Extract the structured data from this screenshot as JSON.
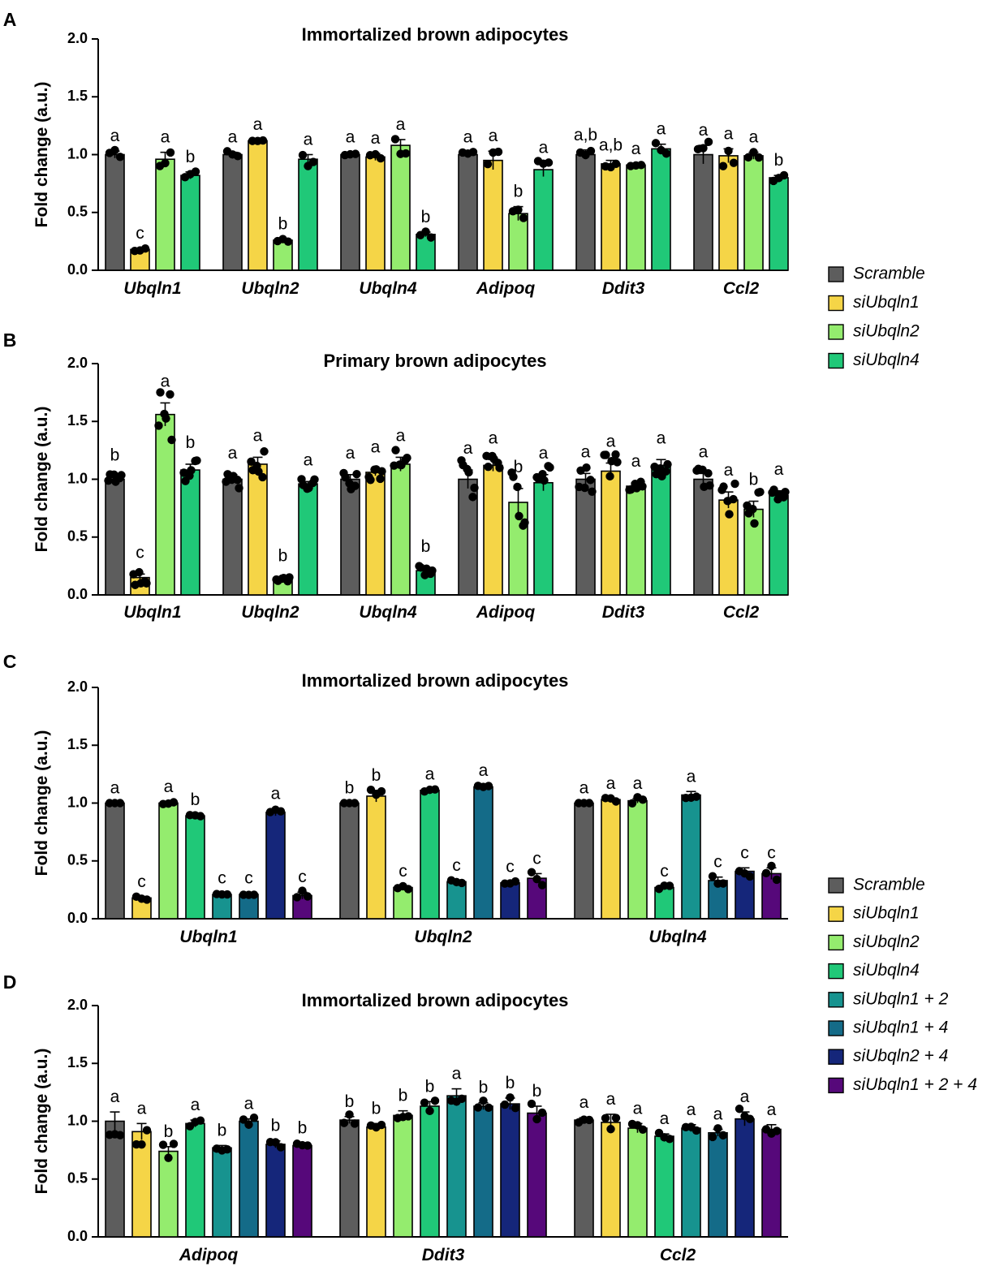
{
  "figure": {
    "y_label": "Fold change (a.u.)",
    "legend_top": [
      {
        "label": "Scramble",
        "color": "#5d5d5d"
      },
      {
        "label": "siUbqln1",
        "color": "#f5d547"
      },
      {
        "label": "siUbqln2",
        "color": "#94ec6e"
      },
      {
        "label": "siUbqln4",
        "color": "#20c878"
      }
    ],
    "legend_bottom": [
      {
        "label": "Scramble",
        "color": "#5d5d5d"
      },
      {
        "label": "siUbqln1",
        "color": "#f5d547"
      },
      {
        "label": "siUbqln2",
        "color": "#94ec6e"
      },
      {
        "label": "siUbqln4",
        "color": "#20c878"
      },
      {
        "label": "siUbqln1 + 2",
        "color": "#17938f"
      },
      {
        "label": "siUbqln1 + 4",
        "color": "#146b88"
      },
      {
        "label": "siUbqln2 + 4",
        "color": "#15267a"
      },
      {
        "label": "siUbqln1 + 2 + 4",
        "color": "#56087a"
      }
    ]
  },
  "chart_data": [
    {
      "panel": "A",
      "type": "bar",
      "title": "Immortalized brown adipocytes",
      "ylabel": "Fold change (a.u.)",
      "ylim": [
        0,
        2.0
      ],
      "yticks": [
        "0.0",
        "0.5",
        "1.0",
        "1.5",
        "2.0"
      ],
      "categories": [
        "Ubqln1",
        "Ubqln2",
        "Ubqln4",
        "Adipoq",
        "Ddit3",
        "Ccl2"
      ],
      "series": [
        {
          "name": "Scramble",
          "values": [
            1.0,
            1.0,
            1.0,
            1.0,
            1.0,
            1.0
          ],
          "sem": [
            0.03,
            0.02,
            0.02,
            0.02,
            0.04,
            0.08
          ],
          "letters": [
            "a",
            "a",
            "a",
            "a",
            "a,b",
            "a"
          ]
        },
        {
          "name": "siUbqln1",
          "values": [
            0.18,
            1.12,
            0.98,
            0.95,
            0.92,
            0.99
          ],
          "sem": [
            0.01,
            0.01,
            0.03,
            0.08,
            0.03,
            0.06
          ],
          "letters": [
            "c",
            "a",
            "a",
            "a",
            "a,b",
            "a"
          ]
        },
        {
          "name": "siUbqln2",
          "values": [
            0.96,
            0.26,
            1.08,
            0.49,
            0.91,
            0.99
          ],
          "sem": [
            0.06,
            0.01,
            0.05,
            0.06,
            0.01,
            0.03
          ],
          "letters": [
            "a",
            "b",
            "a",
            "b",
            "a",
            "a"
          ]
        },
        {
          "name": "siUbqln4",
          "values": [
            0.82,
            0.96,
            0.31,
            0.87,
            1.05,
            0.8
          ],
          "sem": [
            0.03,
            0.04,
            0.02,
            0.06,
            0.04,
            0.02
          ],
          "letters": [
            "b",
            "a",
            "b",
            "a",
            "a",
            "b"
          ]
        }
      ]
    },
    {
      "panel": "B",
      "type": "bar",
      "title": "Primary brown adipocytes",
      "ylabel": "Fold change (a.u.)",
      "ylim": [
        0,
        2.0
      ],
      "yticks": [
        "0.0",
        "0.5",
        "1.0",
        "1.5",
        "2.0"
      ],
      "categories": [
        "Ubqln1",
        "Ubqln2",
        "Ubqln4",
        "Adipoq",
        "Ddit3",
        "Ccl2"
      ],
      "series": [
        {
          "name": "Scramble",
          "values": [
            1.0,
            1.0,
            1.0,
            1.0,
            1.0,
            1.0
          ],
          "sem": [
            0.02,
            0.04,
            0.04,
            0.08,
            0.05,
            0.05
          ],
          "letters": [
            "b",
            "a",
            "a",
            "a",
            "a",
            "a"
          ]
        },
        {
          "name": "siUbqln1",
          "values": [
            0.15,
            1.13,
            1.06,
            1.12,
            1.07,
            0.82
          ],
          "sem": [
            0.03,
            0.06,
            0.03,
            0.05,
            0.07,
            0.07
          ],
          "letters": [
            "c",
            "a",
            "a",
            "a",
            "a",
            "a"
          ]
        },
        {
          "name": "siUbqln2",
          "values": [
            1.56,
            0.14,
            1.13,
            0.8,
            0.94,
            0.74
          ],
          "sem": [
            0.1,
            0.01,
            0.06,
            0.12,
            0.03,
            0.07
          ],
          "letters": [
            "a",
            "b",
            "a",
            "b",
            "a",
            "b"
          ]
        },
        {
          "name": "siUbqln4",
          "values": [
            1.08,
            0.96,
            0.21,
            0.97,
            1.12,
            0.86
          ],
          "sem": [
            0.05,
            0.02,
            0.02,
            0.07,
            0.05,
            0.04
          ],
          "letters": [
            "b",
            "a",
            "b",
            "a",
            "a",
            "a"
          ]
        }
      ]
    },
    {
      "panel": "C",
      "type": "bar",
      "title": "Immortalized brown adipocytes",
      "ylabel": "Fold change (a.u.)",
      "ylim": [
        0,
        2.0
      ],
      "yticks": [
        "0.0",
        "0.5",
        "1.0",
        "1.5",
        "2.0"
      ],
      "categories": [
        "Ubqln1",
        "Ubqln2",
        "Ubqln4"
      ],
      "series": [
        {
          "name": "Scramble",
          "values": [
            1.0,
            1.0,
            1.0
          ],
          "sem": [
            0.0,
            0.0,
            0.0
          ],
          "letters": [
            "a",
            "b",
            "a"
          ]
        },
        {
          "name": "siUbqln1",
          "values": [
            0.18,
            1.06,
            1.03
          ],
          "sem": [
            0.01,
            0.05,
            0.01
          ],
          "letters": [
            "c",
            "b",
            "a"
          ]
        },
        {
          "name": "siUbqln2",
          "values": [
            1.0,
            0.27,
            1.02
          ],
          "sem": [
            0.01,
            0.01,
            0.02
          ],
          "letters": [
            "a",
            "c",
            "a"
          ]
        },
        {
          "name": "siUbqln4",
          "values": [
            0.89,
            1.11,
            0.27
          ],
          "sem": [
            0.01,
            0.01,
            0.01
          ],
          "letters": [
            "b",
            "a",
            "c"
          ]
        },
        {
          "name": "siUbqln1 + 2",
          "values": [
            0.21,
            0.32,
            1.07
          ],
          "sem": [
            0.01,
            0.01,
            0.03
          ],
          "letters": [
            "c",
            "c",
            "a"
          ]
        },
        {
          "name": "siUbqln1 + 4",
          "values": [
            0.21,
            1.14,
            0.33
          ],
          "sem": [
            0.01,
            0.01,
            0.03
          ],
          "letters": [
            "c",
            "a",
            "c"
          ]
        },
        {
          "name": "siUbqln2 + 4",
          "values": [
            0.92,
            0.31,
            0.41
          ],
          "sem": [
            0.03,
            0.01,
            0.03
          ],
          "letters": [
            "a",
            "c",
            "c"
          ]
        },
        {
          "name": "siUbqln1 + 2 + 4",
          "values": [
            0.2,
            0.35,
            0.39
          ],
          "sem": [
            0.03,
            0.04,
            0.05
          ],
          "letters": [
            "c",
            "c",
            "c"
          ]
        }
      ]
    },
    {
      "panel": "D",
      "type": "bar",
      "title": "Immortalized brown adipocytes",
      "ylabel": "Fold change (a.u.)",
      "ylim": [
        0,
        2.0
      ],
      "yticks": [
        "0.0",
        "0.5",
        "1.0",
        "1.5",
        "2.0"
      ],
      "categories": [
        "Adipoq",
        "Ddit3",
        "Ccl2"
      ],
      "series": [
        {
          "name": "Scramble",
          "values": [
            1.0,
            1.01,
            1.01
          ],
          "sem": [
            0.08,
            0.03,
            0.02
          ],
          "letters": [
            "a",
            "b",
            "a"
          ]
        },
        {
          "name": "siUbqln1",
          "values": [
            0.91,
            0.95,
            0.99
          ],
          "sem": [
            0.07,
            0.03,
            0.07
          ],
          "letters": [
            "a",
            "b",
            "a"
          ]
        },
        {
          "name": "siUbqln2",
          "values": [
            0.74,
            1.05,
            0.94
          ],
          "sem": [
            0.04,
            0.04,
            0.04
          ],
          "letters": [
            "b",
            "b",
            "a"
          ]
        },
        {
          "name": "siUbqln4",
          "values": [
            0.98,
            1.13,
            0.87
          ],
          "sem": [
            0.03,
            0.04,
            0.02
          ],
          "letters": [
            "a",
            "b",
            "a"
          ]
        },
        {
          "name": "siUbqln1 + 2",
          "values": [
            0.77,
            1.22,
            0.94
          ],
          "sem": [
            0.02,
            0.06,
            0.03
          ],
          "letters": [
            "b",
            "a",
            "a"
          ]
        },
        {
          "name": "siUbqln1 + 4",
          "values": [
            1.0,
            1.13,
            0.9
          ],
          "sem": [
            0.02,
            0.03,
            0.03
          ],
          "letters": [
            "a",
            "b",
            "a"
          ]
        },
        {
          "name": "siUbqln2 + 4",
          "values": [
            0.8,
            1.15,
            1.02
          ],
          "sem": [
            0.03,
            0.05,
            0.06
          ],
          "letters": [
            "b",
            "b",
            "a"
          ]
        },
        {
          "name": "siUbqln1 + 2 + 4",
          "values": [
            0.79,
            1.07,
            0.93
          ],
          "sem": [
            0.02,
            0.06,
            0.04
          ],
          "letters": [
            "b",
            "b",
            "a"
          ]
        }
      ]
    }
  ]
}
